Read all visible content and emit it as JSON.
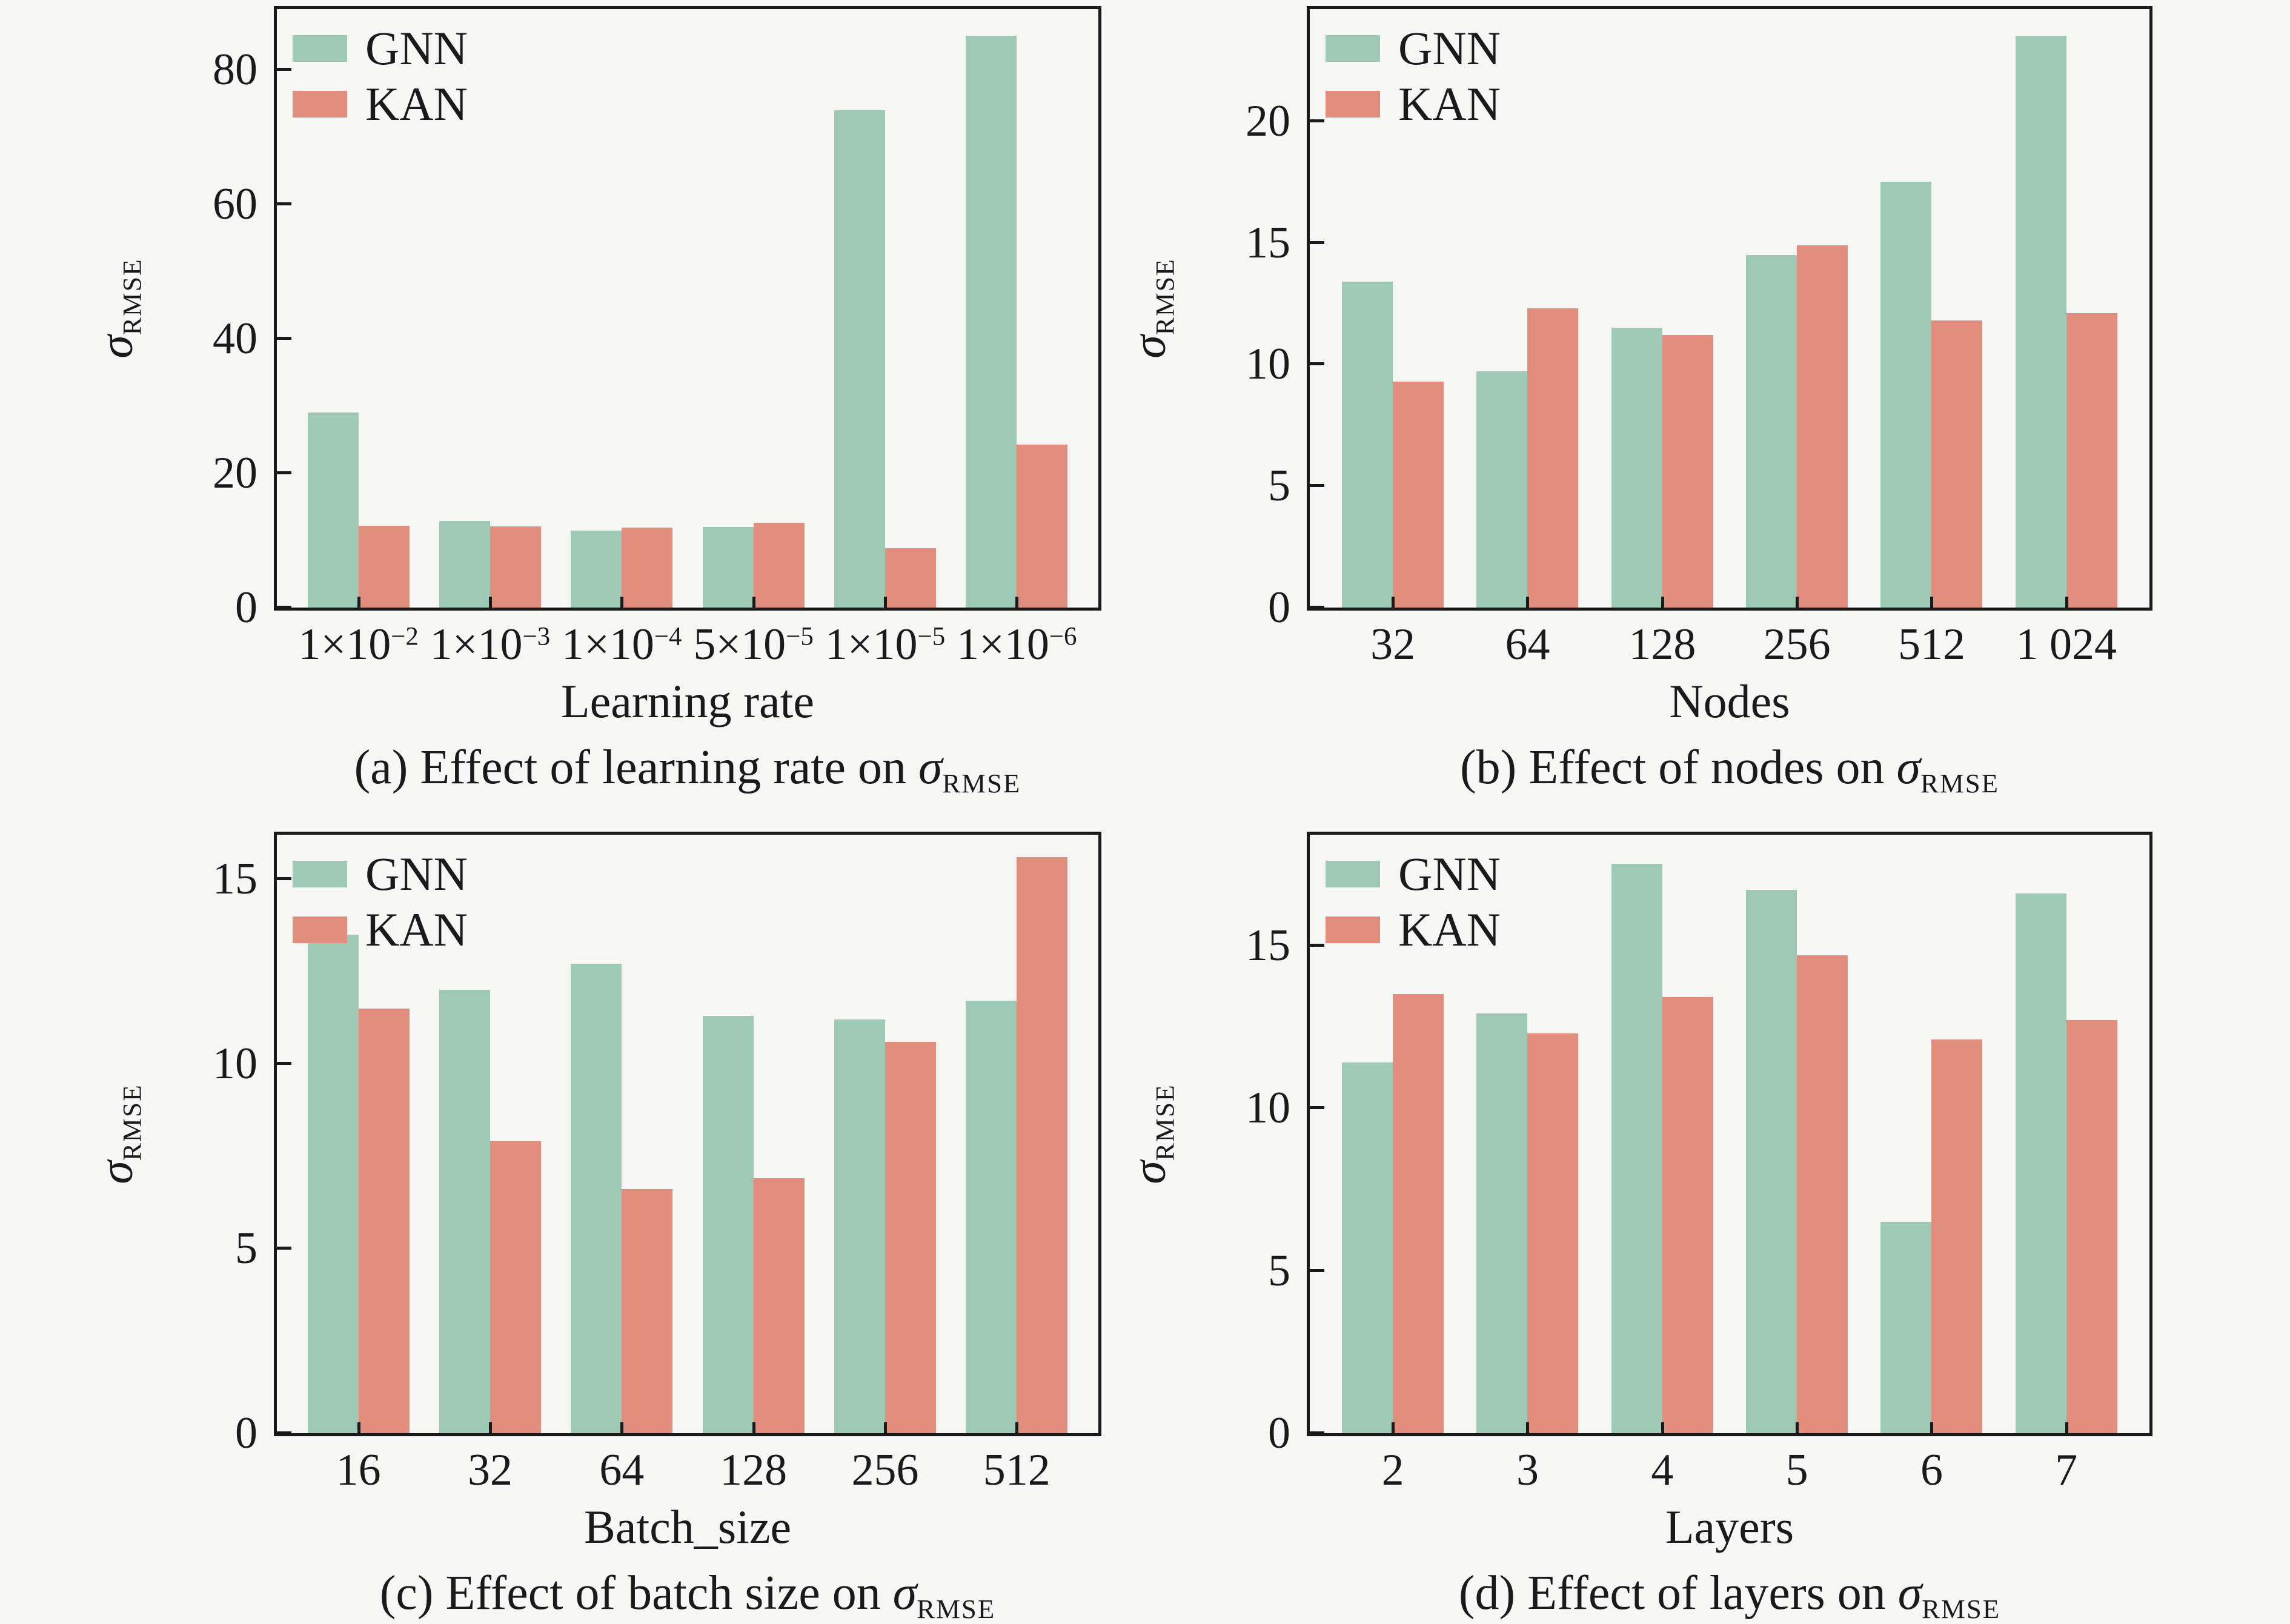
{
  "figure": {
    "background": "#f6f6f5",
    "axis_color": "#1a1a1a"
  },
  "colors": {
    "gnn": "#9dc9b5",
    "kan": "#e28e7e"
  },
  "sigma": "σ",
  "rmse_sub": "RMSE",
  "chart_data": [
    {
      "id": "a",
      "type": "bar",
      "title": "(a) Effect of learning rate on σ_RMSE",
      "caption_prefix": "(a) Effect of learning rate on ",
      "xlabel": "Learning rate",
      "ylabel": "σ_RMSE",
      "categories": [
        {
          "base": "1×10",
          "exp": "−2"
        },
        {
          "base": "1×10",
          "exp": "−3"
        },
        {
          "base": "1×10",
          "exp": "−4"
        },
        {
          "base": "5×10",
          "exp": "−5"
        },
        {
          "base": "1×10",
          "exp": "−5"
        },
        {
          "base": "1×10",
          "exp": "−6"
        }
      ],
      "series": [
        {
          "name": "GNN",
          "values": [
            29.0,
            12.9,
            11.4,
            12.0,
            74.0,
            85.0
          ]
        },
        {
          "name": "KAN",
          "values": [
            12.2,
            12.1,
            11.9,
            12.6,
            8.8,
            24.2
          ]
        }
      ],
      "yticks": [
        0,
        20,
        40,
        60,
        80
      ],
      "ylim": [
        0,
        89
      ],
      "grid": false,
      "legend_position": "upper left"
    },
    {
      "id": "b",
      "type": "bar",
      "title": "(b) Effect of nodes on σ_RMSE",
      "caption_prefix": "(b) Effect of nodes on ",
      "xlabel": "Nodes",
      "ylabel": "σ_RMSE",
      "categories": [
        "32",
        "64",
        "128",
        "256",
        "512",
        "1 024"
      ],
      "series": [
        {
          "name": "GNN",
          "values": [
            13.4,
            9.7,
            11.5,
            14.5,
            17.5,
            23.5
          ]
        },
        {
          "name": "KAN",
          "values": [
            9.3,
            12.3,
            11.2,
            14.9,
            11.8,
            12.1
          ]
        }
      ],
      "yticks": [
        0,
        5,
        10,
        15,
        20
      ],
      "ylim": [
        0,
        24.6
      ],
      "grid": false,
      "legend_position": "upper left"
    },
    {
      "id": "c",
      "type": "bar",
      "title": "(c) Effect of batch size on σ_RMSE",
      "caption_prefix": "(c) Effect of batch size on ",
      "xlabel": "Batch_size",
      "ylabel": "σ_RMSE",
      "categories": [
        "16",
        "32",
        "64",
        "128",
        "256",
        "512"
      ],
      "series": [
        {
          "name": "GNN",
          "values": [
            13.5,
            12.0,
            12.7,
            11.3,
            11.2,
            11.7
          ]
        },
        {
          "name": "KAN",
          "values": [
            11.5,
            7.9,
            6.6,
            6.9,
            10.6,
            15.6
          ]
        }
      ],
      "yticks": [
        0,
        5,
        10,
        15
      ],
      "ylim": [
        0,
        16.2
      ],
      "grid": false,
      "legend_position": "upper left"
    },
    {
      "id": "d",
      "type": "bar",
      "title": "(d) Effect of layers on σ_RMSE",
      "caption_prefix": "(d) Effect of layers on ",
      "xlabel": "Layers",
      "ylabel": "σ_RMSE",
      "categories": [
        "2",
        "3",
        "4",
        "5",
        "6",
        "7"
      ],
      "series": [
        {
          "name": "GNN",
          "values": [
            11.4,
            12.9,
            17.5,
            16.7,
            6.5,
            16.6
          ]
        },
        {
          "name": "KAN",
          "values": [
            13.5,
            12.3,
            13.4,
            14.7,
            12.1,
            12.7
          ]
        }
      ],
      "yticks": [
        0,
        5,
        10,
        15
      ],
      "ylim": [
        0,
        18.4
      ],
      "grid": false,
      "legend_position": "upper left"
    }
  ]
}
